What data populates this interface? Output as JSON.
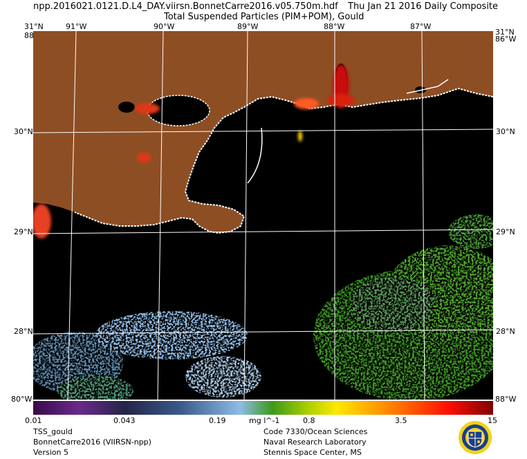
{
  "header": {
    "filename": "npp.2016021.0121.D.L4_DAY.viirsn.BonnetCarre2016.v05.750m.hdf",
    "date": "Thu Jan 21 2016 Daily Composite",
    "subtitle": "Total Suspended Particles (PIM+POM), Gould"
  },
  "map": {
    "lon_labels": [
      "91°W",
      "90°W",
      "89°W",
      "88°W",
      "87°W"
    ],
    "lat_labels": [
      "30°N",
      "29°N",
      "28°N"
    ],
    "corner_top_left_lat": "31°N",
    "corner_top_left_lon": "88°W",
    "corner_top_right_lat": "31°N",
    "corner_top_right_lon": "86°W",
    "corner_bottom_left": "80°W",
    "corner_bottom_right": "88°W",
    "colors": {
      "land": "#8e4e23",
      "water_nodata": "#000000",
      "coast": "#ffffff",
      "grid": "#ffffff",
      "low_tss": "#8fbbe6",
      "mid_tss": "#3e9a23",
      "high_tss": "#e02010"
    }
  },
  "colorbar": {
    "ticks": [
      "0.01",
      "0.043",
      "0.19",
      "0.8",
      "3.5",
      "15"
    ],
    "unit": "mg l^-1"
  },
  "footer": {
    "left": [
      "TSS_gould",
      "BonnetCarre2016 (VIIRSN-npp)",
      "Version 5"
    ],
    "right": [
      "Code 7330/Ocean Sciences",
      "Naval Research Laboratory",
      "Stennis Space Center, MS"
    ]
  },
  "logo": {
    "icon": "nrl-seal-icon"
  }
}
